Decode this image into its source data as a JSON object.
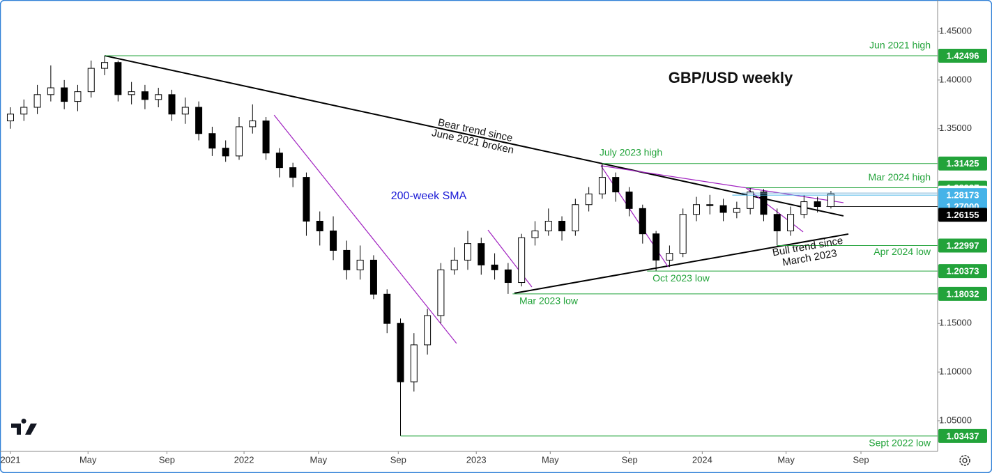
{
  "chart_data": {
    "type": "candlestick",
    "title": "GBP/USD weekly",
    "annotations": [
      "Bear trend since\nJune 2021 broken",
      "Bull trend since\nMarch 2023",
      "200-week SMA"
    ],
    "xlim": [
      -2.33,
      206.8
    ],
    "ylim": [
      1.0185,
      1.4822
    ],
    "xticks": [
      {
        "value": 0,
        "label": "2021"
      },
      {
        "value": 17.3,
        "label": "May"
      },
      {
        "value": 34.9,
        "label": "Sep"
      },
      {
        "value": 52.1,
        "label": "2022"
      },
      {
        "value": 68.7,
        "label": "May"
      },
      {
        "value": 86.5,
        "label": "Sep"
      },
      {
        "value": 103.9,
        "label": "2023"
      },
      {
        "value": 120.4,
        "label": "May"
      },
      {
        "value": 138.1,
        "label": "Sep"
      },
      {
        "value": 154.3,
        "label": "2024"
      },
      {
        "value": 173,
        "label": "May"
      },
      {
        "value": 189.7,
        "label": "Sep"
      }
    ],
    "yticks": [
      {
        "value": 1.45,
        "label": "1.45000"
      },
      {
        "value": 1.4,
        "label": "1.40000"
      },
      {
        "value": 1.35,
        "label": "1.35000"
      },
      {
        "value": 1.15,
        "label": "1.15000"
      },
      {
        "value": 1.1,
        "label": "1.10000"
      },
      {
        "value": 1.05,
        "label": "1.05000"
      }
    ],
    "x": [
      0,
      3,
      6,
      9,
      12,
      15,
      18,
      21,
      24,
      27,
      30,
      33,
      36,
      39,
      42,
      45,
      48,
      51,
      54,
      57,
      60,
      63,
      66,
      69,
      72,
      75,
      78,
      81,
      84,
      87,
      90,
      93,
      96,
      99,
      102,
      105,
      108,
      111,
      114,
      117,
      120,
      123,
      126,
      129,
      132,
      135,
      138,
      141,
      144,
      147,
      150,
      153,
      156,
      159,
      162,
      165,
      168,
      171,
      174,
      177,
      180,
      183
    ],
    "open": [
      1.358,
      1.365,
      1.372,
      1.385,
      1.392,
      1.378,
      1.388,
      1.412,
      1.418,
      1.385,
      1.388,
      1.38,
      1.385,
      1.365,
      1.372,
      1.345,
      1.33,
      1.322,
      1.352,
      1.358,
      1.325,
      1.31,
      1.3,
      1.255,
      1.245,
      1.225,
      1.205,
      1.215,
      1.18,
      1.15,
      1.09,
      1.128,
      1.158,
      1.205,
      1.215,
      1.232,
      1.21,
      1.205,
      1.192,
      1.238,
      1.245,
      1.255,
      1.245,
      1.272,
      1.283,
      1.3,
      1.285,
      1.268,
      1.242,
      1.215,
      1.222,
      1.262,
      1.272,
      1.271,
      1.264,
      1.268,
      1.285,
      1.262,
      1.245,
      1.262,
      1.275,
      1.27
    ],
    "high": [
      1.372,
      1.38,
      1.395,
      1.415,
      1.4,
      1.395,
      1.42,
      1.425,
      1.42,
      1.398,
      1.395,
      1.392,
      1.39,
      1.382,
      1.378,
      1.352,
      1.338,
      1.362,
      1.375,
      1.362,
      1.33,
      1.315,
      1.305,
      1.265,
      1.26,
      1.235,
      1.23,
      1.22,
      1.185,
      1.155,
      1.14,
      1.165,
      1.212,
      1.228,
      1.245,
      1.238,
      1.222,
      1.212,
      1.242,
      1.255,
      1.268,
      1.26,
      1.278,
      1.29,
      1.3143,
      1.305,
      1.29,
      1.272,
      1.245,
      1.23,
      1.268,
      1.28,
      1.282,
      1.278,
      1.275,
      1.2894,
      1.288,
      1.268,
      1.27,
      1.282,
      1.28,
      1.286
    ],
    "low": [
      1.35,
      1.358,
      1.365,
      1.378,
      1.37,
      1.368,
      1.382,
      1.405,
      1.378,
      1.375,
      1.37,
      1.372,
      1.358,
      1.355,
      1.338,
      1.322,
      1.316,
      1.318,
      1.345,
      1.318,
      1.3,
      1.29,
      1.24,
      1.23,
      1.215,
      1.195,
      1.195,
      1.175,
      1.14,
      1.0344,
      1.08,
      1.118,
      1.15,
      1.2,
      1.205,
      1.2,
      1.195,
      1.1803,
      1.188,
      1.23,
      1.24,
      1.235,
      1.24,
      1.265,
      1.278,
      1.275,
      1.26,
      1.232,
      1.2037,
      1.208,
      1.218,
      1.255,
      1.262,
      1.255,
      1.258,
      1.262,
      1.255,
      1.23,
      1.24,
      1.258,
      1.264,
      1.268
    ],
    "close": [
      1.365,
      1.372,
      1.385,
      1.392,
      1.378,
      1.388,
      1.412,
      1.418,
      1.385,
      1.388,
      1.38,
      1.385,
      1.365,
      1.372,
      1.345,
      1.33,
      1.322,
      1.352,
      1.358,
      1.325,
      1.31,
      1.3,
      1.255,
      1.245,
      1.225,
      1.205,
      1.215,
      1.18,
      1.15,
      1.09,
      1.128,
      1.158,
      1.205,
      1.215,
      1.232,
      1.21,
      1.205,
      1.192,
      1.238,
      1.245,
      1.255,
      1.245,
      1.272,
      1.283,
      1.3,
      1.285,
      1.268,
      1.242,
      1.215,
      1.222,
      1.262,
      1.272,
      1.271,
      1.264,
      1.268,
      1.285,
      1.262,
      1.245,
      1.262,
      1.275,
      1.27,
      1.283
    ],
    "up_color": "#ffffff",
    "down_color": "#000000",
    "levels": [
      {
        "name": "Jun 2021 high",
        "value": 1.42496,
        "start": 21,
        "color": "#22a33a"
      },
      {
        "name": "July 2023 high",
        "value": 1.31425,
        "start": 132,
        "color": "#22a33a"
      },
      {
        "name": "Mar 2024 high",
        "value": 1.28937,
        "start": 164,
        "color": "#22a33a"
      },
      {
        "value": 1.28386,
        "start": 163,
        "color": "#ffffff"
      },
      {
        "value": 1.28173,
        "start": 161,
        "color": "#45b3e8"
      },
      {
        "value": 1.27,
        "value_label": "1.27000",
        "start": 182,
        "color": "#45b3e8"
      },
      {
        "value": 1.26155,
        "color": "#000000"
      },
      {
        "name": "Apr 2024 low",
        "value": 1.22997,
        "start": 171,
        "color": "#22a33a"
      },
      {
        "name": "Oct 2023 low",
        "value": 1.20373,
        "start": 142,
        "color": "#22a33a"
      },
      {
        "name": "Mar 2023 low",
        "value": 1.18032,
        "start": 112,
        "color": "#22a33a"
      },
      {
        "name": "Sept 2022 low",
        "value": 1.03437,
        "start": 87,
        "color": "#22a33a"
      }
    ],
    "trendlines": [
      {
        "x": [
          21,
          185.8
        ],
        "y": [
          1.425,
          1.2604
        ],
        "color": "#000000"
      },
      {
        "x": [
          112.4,
          186.9
        ],
        "y": [
          1.181,
          1.2418
        ],
        "color": "#000000"
      },
      {
        "x": [
          58.8,
          99.5
        ],
        "y": [
          1.364,
          1.1294
        ],
        "color": "#a020c0"
      },
      {
        "x": [
          106.5,
          116.3
        ],
        "y": [
          1.246,
          1.1874
        ],
        "color": "#a020c0"
      },
      {
        "x": [
          131.7,
          146.7
        ],
        "y": [
          1.312,
          1.208
        ],
        "color": "#a020c0"
      },
      {
        "x": [
          131.7,
          185.8
        ],
        "y": [
          1.312,
          1.274
        ],
        "color": "#a020c0"
      },
      {
        "x": [
          164.1,
          176.8
        ],
        "y": [
          1.289,
          1.244
        ],
        "color": "#a020c0"
      }
    ]
  }
}
